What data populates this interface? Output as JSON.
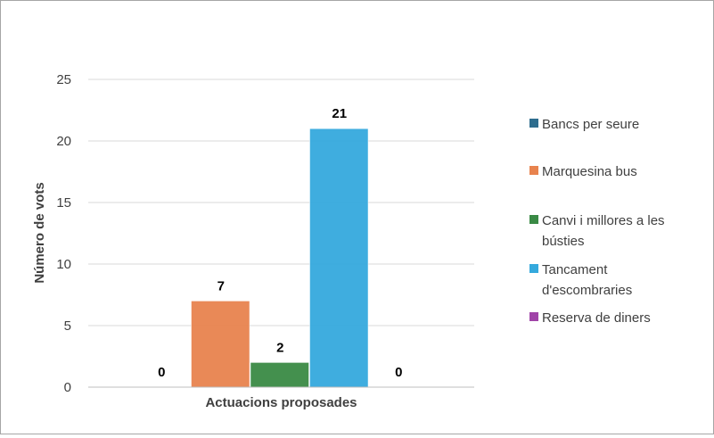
{
  "chart_data": {
    "type": "bar",
    "categories": [
      "Actuacions proposades"
    ],
    "series": [
      {
        "name": "Bancs per seure",
        "values": [
          0
        ],
        "color": "#2e6d8e"
      },
      {
        "name": "Marquesina bus",
        "values": [
          7
        ],
        "color": "#e8834e"
      },
      {
        "name": "Canvi i millores a les bústies",
        "values": [
          2
        ],
        "color": "#3a8a45"
      },
      {
        "name": "Tancament d'escombraries",
        "values": [
          21
        ],
        "color": "#35a9dd"
      },
      {
        "name": "Reserva de diners",
        "values": [
          0
        ],
        "color": "#a044a8"
      }
    ],
    "ylabel": "Número de vots",
    "xlabel": "",
    "ylim": [
      0,
      25
    ],
    "yticks": [
      0,
      5,
      10,
      15,
      20,
      25
    ],
    "grid": true,
    "legend_position": "right",
    "data_labels": true
  }
}
